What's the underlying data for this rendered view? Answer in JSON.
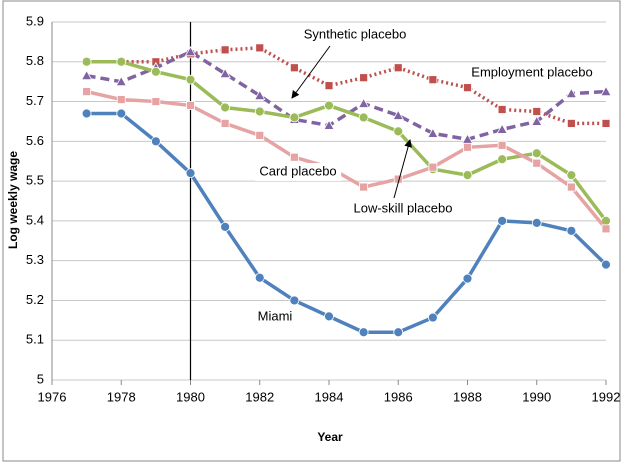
{
  "chart_data": {
    "type": "line",
    "xlabel": "Year",
    "ylabel": "Log weekly wage",
    "x": [
      1977,
      1978,
      1979,
      1980,
      1981,
      1982,
      1983,
      1984,
      1985,
      1986,
      1987,
      1988,
      1989,
      1990,
      1991,
      1992
    ],
    "series": [
      {
        "name": "Employment placebo",
        "color": "#c0504d",
        "marker": "square",
        "dash": "dotted",
        "values": [
          5.8,
          5.8,
          5.8,
          5.82,
          5.83,
          5.835,
          5.785,
          5.74,
          5.76,
          5.785,
          5.755,
          5.735,
          5.68,
          5.675,
          5.645,
          5.645
        ]
      },
      {
        "name": "Synthetic placebo",
        "color": "#8064a2",
        "marker": "triangle",
        "dash": "dashed",
        "values": [
          5.765,
          5.75,
          5.785,
          5.825,
          5.77,
          5.715,
          5.655,
          5.64,
          5.695,
          5.665,
          5.62,
          5.605,
          5.63,
          5.65,
          5.72,
          5.725
        ]
      },
      {
        "name": "Low-skill placebo",
        "color": "#9bbb59",
        "marker": "circle",
        "dash": "solid",
        "values": [
          5.8,
          5.8,
          5.775,
          5.755,
          5.685,
          5.675,
          5.66,
          5.69,
          5.66,
          5.625,
          5.53,
          5.515,
          5.555,
          5.57,
          5.515,
          5.4
        ]
      },
      {
        "name": "Card placebo",
        "color": "#e6a3a3",
        "marker": "square",
        "dash": "solid",
        "values": [
          5.725,
          5.705,
          5.7,
          5.69,
          5.645,
          5.615,
          5.56,
          5.535,
          5.485,
          5.505,
          5.535,
          5.585,
          5.59,
          5.545,
          5.485,
          5.38
        ]
      },
      {
        "name": "Miami",
        "color": "#4f81bd",
        "marker": "circle",
        "dash": "solid",
        "values": [
          5.67,
          5.67,
          5.6,
          5.52,
          5.385,
          5.257,
          5.2,
          5.16,
          5.12,
          5.12,
          5.157,
          5.255,
          5.4,
          5.395,
          5.375,
          5.29
        ]
      }
    ],
    "vline": 1980,
    "xlim": [
      1976,
      1992
    ],
    "xticks": [
      1976,
      1978,
      1980,
      1982,
      1984,
      1986,
      1988,
      1990,
      1992
    ],
    "ylim": [
      5,
      5.9
    ],
    "yticks": [
      5,
      5.1,
      5.2,
      5.3,
      5.4,
      5.5,
      5.6,
      5.7,
      5.8,
      5.9
    ],
    "grid": true
  }
}
